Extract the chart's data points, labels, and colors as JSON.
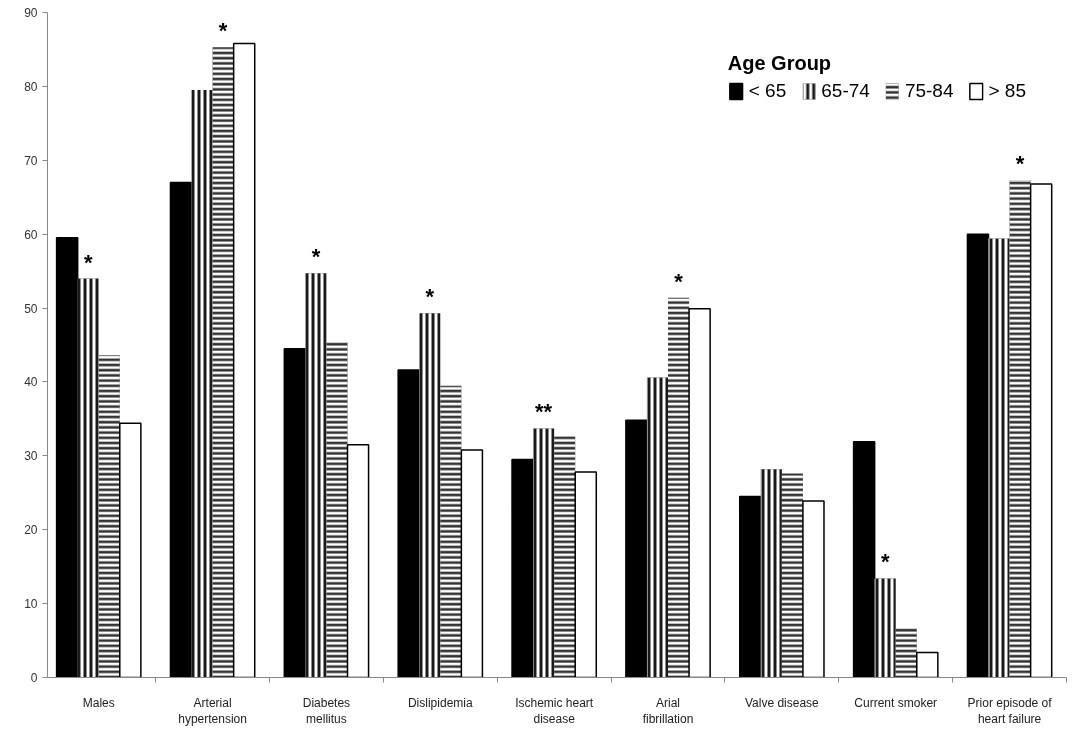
{
  "chart_data": {
    "type": "bar",
    "legend_title": "Age Group",
    "legend": "top right",
    "grid": false,
    "categories": [
      "Males",
      "Arterial hypertension",
      "Diabetes mellitus",
      "Dislipidemia",
      "Ischemic heart disease",
      "Arial fibrillation",
      "Valve disease",
      "Current smoker",
      "Prior episode of heart failure"
    ],
    "series": [
      {
        "name": "< 65",
        "color": "#000000",
        "values": [
          59.5,
          67.0,
          44.5,
          41.6,
          29.5,
          34.8,
          24.5,
          31.9,
          60.0
        ]
      },
      {
        "name": "65-74",
        "color": "#1a1a1a",
        "values": [
          54.0,
          79.5,
          54.7,
          49.3,
          33.7,
          40.6,
          28.2,
          13.4,
          59.4
        ]
      },
      {
        "name": "75-84",
        "color": "#333333",
        "values": [
          43.6,
          85.3,
          45.4,
          39.5,
          32.6,
          51.4,
          27.6,
          6.6,
          67.3
        ]
      },
      {
        "name": "> 85",
        "color": "#ffffff",
        "values": [
          34.4,
          85.8,
          31.5,
          30.8,
          27.8,
          49.9,
          23.9,
          3.4,
          66.8
        ]
      }
    ],
    "ylim": [
      0,
      90
    ],
    "yticks": [
      0,
      10,
      20,
      30,
      40,
      50,
      60,
      70,
      80,
      90
    ],
    "annotations": [
      {
        "text": "*",
        "x": "Males",
        "y": 54.0
      },
      {
        "text": "*",
        "x": "Arterial hypertension",
        "y": 85.3
      },
      {
        "text": "*",
        "x": "Diabetes mellitus",
        "y": 54.7
      },
      {
        "text": "*",
        "x": "Dislipidemia",
        "y": 49.3
      },
      {
        "text": "**",
        "x": "Ischemic heart disease",
        "y": 33.7
      },
      {
        "text": "*",
        "x": "Arial fibrillation",
        "y": 51.4
      },
      {
        "text": "*",
        "x": "Current smoker",
        "y": 13.4
      },
      {
        "text": "*",
        "x": "Prior episode of heart failure",
        "y": 67.3
      }
    ]
  }
}
